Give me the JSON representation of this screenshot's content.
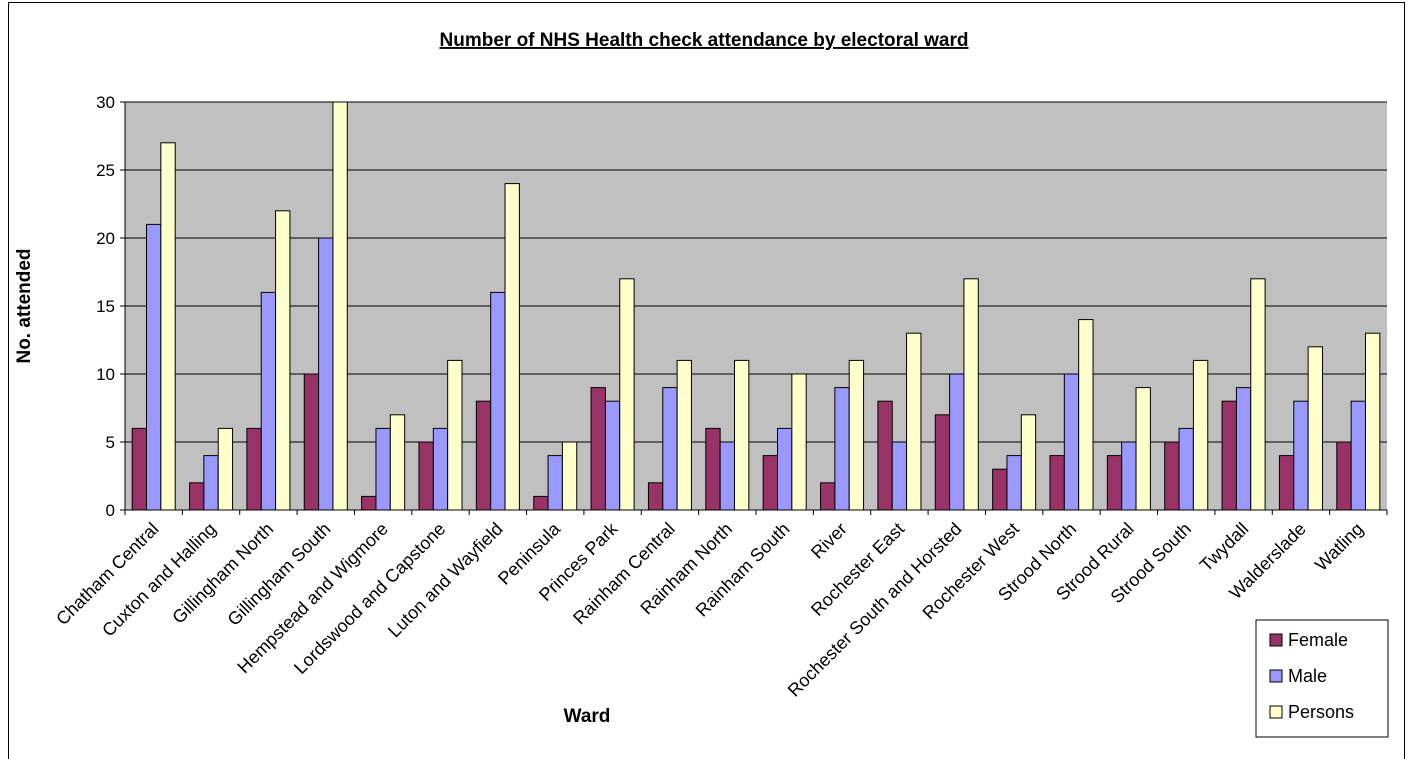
{
  "chart_data": {
    "type": "bar",
    "title": "Number of NHS Health check attendance by electoral ward",
    "xlabel": "Ward",
    "ylabel": "No. attended",
    "ylim": [
      0,
      30
    ],
    "yticks": [
      0,
      5,
      10,
      15,
      20,
      25,
      30
    ],
    "grid": true,
    "legend_position": "bottom-right",
    "categories": [
      "Chatham Central",
      "Cuxton and Halling",
      "Gillingham North",
      "Gillingham South",
      "Hempstead and Wigmore",
      "Lordswood and Capstone",
      "Luton and Wayfield",
      "Peninsula",
      "Princes Park",
      "Rainham Central",
      "Rainham North",
      "Rainham South",
      "River",
      "Rochester East",
      "Rochester South and Horsted",
      "Rochester West",
      "Strood North",
      "Strood Rural",
      "Strood South",
      "Twydall",
      "Walderslade",
      "Watling"
    ],
    "series": [
      {
        "name": "Female",
        "color": "#993366",
        "values": [
          6,
          2,
          6,
          10,
          1,
          5,
          8,
          1,
          9,
          2,
          6,
          4,
          2,
          8,
          7,
          3,
          4,
          4,
          5,
          8,
          4,
          5
        ]
      },
      {
        "name": "Male",
        "color": "#9999ff",
        "values": [
          21,
          4,
          16,
          20,
          6,
          6,
          16,
          4,
          8,
          9,
          5,
          6,
          9,
          5,
          10,
          4,
          10,
          5,
          6,
          9,
          8,
          8
        ]
      },
      {
        "name": "Persons",
        "color": "#ffffcc",
        "values": [
          27,
          6,
          22,
          30,
          7,
          11,
          24,
          5,
          17,
          11,
          11,
          10,
          11,
          13,
          17,
          7,
          14,
          9,
          11,
          17,
          12,
          13
        ]
      }
    ],
    "plot_background": "#c0c0c0"
  }
}
